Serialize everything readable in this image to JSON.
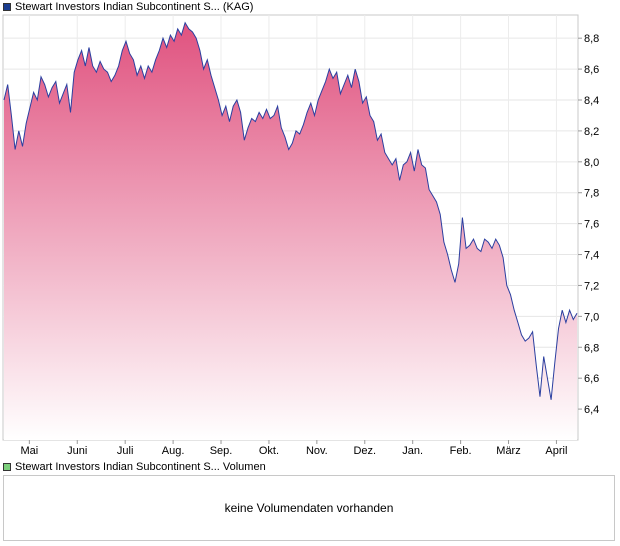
{
  "chart_data": {
    "type": "area",
    "title": "Stewart Investors Indian Subcontinent S... (KAG)",
    "legend_color": "#1a3d8f",
    "line_color": "#2b3fa0",
    "fill_top_color": "#e0527f",
    "fill_bottom_color": "#ffffff",
    "grid": true,
    "x_tick_labels": [
      "Mai",
      "Juni",
      "Juli",
      "Aug.",
      "Sep.",
      "Okt.",
      "Nov.",
      "Dez.",
      "Jan.",
      "Feb.",
      "März",
      "April"
    ],
    "y_ticks": [
      6.4,
      6.6,
      6.8,
      7.0,
      7.2,
      7.4,
      7.6,
      7.8,
      8.0,
      8.2,
      8.4,
      8.6,
      8.8
    ],
    "y_tick_labels": [
      "6,4",
      "6,6",
      "6,8",
      "7,0",
      "7,2",
      "7,4",
      "7,6",
      "7,8",
      "8,0",
      "8,2",
      "8,4",
      "8,6",
      "8,8"
    ],
    "ylim": [
      6.2,
      8.95
    ],
    "series": [
      {
        "values": [
          8.4,
          8.5,
          8.3,
          8.08,
          8.2,
          8.1,
          8.25,
          8.35,
          8.45,
          8.4,
          8.55,
          8.5,
          8.42,
          8.48,
          8.52,
          8.38,
          8.44,
          8.5,
          8.32,
          8.58,
          8.66,
          8.72,
          8.62,
          8.74,
          8.62,
          8.58,
          8.65,
          8.6,
          8.58,
          8.52,
          8.56,
          8.62,
          8.72,
          8.78,
          8.7,
          8.66,
          8.56,
          8.62,
          8.54,
          8.62,
          8.58,
          8.66,
          8.72,
          8.8,
          8.74,
          8.82,
          8.78,
          8.86,
          8.82,
          8.9,
          8.86,
          8.84,
          8.8,
          8.72,
          8.6,
          8.66,
          8.56,
          8.48,
          8.4,
          8.3,
          8.36,
          8.26,
          8.36,
          8.4,
          8.32,
          8.14,
          8.22,
          8.28,
          8.26,
          8.32,
          8.28,
          8.34,
          8.28,
          8.3,
          8.36,
          8.22,
          8.16,
          8.08,
          8.12,
          8.2,
          8.18,
          8.24,
          8.32,
          8.38,
          8.3,
          8.4,
          8.46,
          8.52,
          8.6,
          8.54,
          8.58,
          8.44,
          8.5,
          8.56,
          8.48,
          8.6,
          8.52,
          8.38,
          8.42,
          8.3,
          8.26,
          8.14,
          8.18,
          8.06,
          8.02,
          7.98,
          8.02,
          7.88,
          7.98,
          8.0,
          8.06,
          7.94,
          8.08,
          7.98,
          7.96,
          7.82,
          7.78,
          7.74,
          7.66,
          7.48,
          7.4,
          7.3,
          7.22,
          7.34,
          7.64,
          7.44,
          7.46,
          7.5,
          7.44,
          7.42,
          7.5,
          7.48,
          7.44,
          7.5,
          7.46,
          7.38,
          7.2,
          7.14,
          7.04,
          6.96,
          6.88,
          6.84,
          6.86,
          6.9,
          6.68,
          6.48,
          6.74,
          6.6,
          6.46,
          6.7,
          6.92,
          7.04,
          6.96,
          7.04,
          6.98,
          7.02
        ]
      }
    ]
  },
  "volume_panel": {
    "legend_text": "Stewart Investors Indian Subcontinent S... Volumen",
    "legend_color": "#7ccf7c",
    "message": "keine Volumendaten vorhanden"
  }
}
